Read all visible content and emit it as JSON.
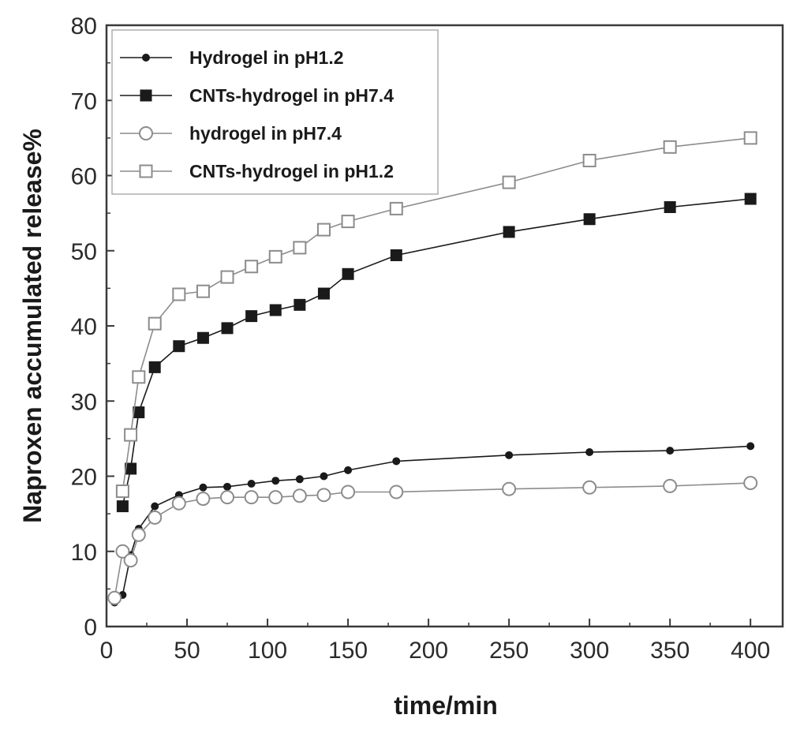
{
  "chart_data": {
    "type": "line",
    "title": "",
    "xlabel": "time/min",
    "ylabel": "Naproxen accumulated release%",
    "xlim": [
      0,
      420
    ],
    "ylim": [
      0,
      80
    ],
    "xticks": [
      0,
      50,
      100,
      150,
      200,
      250,
      300,
      350,
      400
    ],
    "yticks": [
      0,
      10,
      20,
      30,
      40,
      50,
      60,
      70,
      80
    ],
    "grid": false,
    "legend_position": "top-left",
    "series": [
      {
        "name": "Hydrogel in pH1.2",
        "marker": "small-filled-circle",
        "color": "#1a1a1a",
        "x": [
          5,
          10,
          15,
          20,
          30,
          45,
          60,
          75,
          90,
          105,
          120,
          135,
          150,
          180,
          250,
          300,
          350,
          400
        ],
        "y": [
          3.2,
          4.2,
          9.5,
          13.0,
          16.0,
          17.5,
          18.5,
          18.6,
          19.0,
          19.4,
          19.6,
          20.0,
          20.8,
          22.0,
          22.8,
          23.2,
          23.4,
          24.0
        ]
      },
      {
        "name": "CNTs-hydrogel in pH7.4",
        "marker": "filled-square",
        "color": "#1a1a1a",
        "x": [
          10,
          15,
          20,
          30,
          45,
          60,
          75,
          90,
          105,
          120,
          135,
          150,
          180,
          250,
          300,
          350,
          400
        ],
        "y": [
          16.0,
          21.0,
          28.5,
          34.5,
          37.3,
          38.4,
          39.7,
          41.3,
          42.1,
          42.8,
          44.3,
          46.9,
          49.4,
          52.5,
          54.2,
          55.8,
          56.9
        ]
      },
      {
        "name": "hydrogel in pH7.4",
        "marker": "open-circle",
        "color": "#8c8c8c",
        "x": [
          5,
          10,
          15,
          20,
          30,
          45,
          60,
          75,
          90,
          105,
          120,
          135,
          150,
          180,
          250,
          300,
          350,
          400
        ],
        "y": [
          3.8,
          10.0,
          8.8,
          12.2,
          14.5,
          16.4,
          17.0,
          17.2,
          17.2,
          17.2,
          17.4,
          17.5,
          17.9,
          17.9,
          18.3,
          18.5,
          18.7,
          19.1
        ]
      },
      {
        "name": "CNTs-hydrogel in pH1.2",
        "marker": "open-square",
        "color": "#8c8c8c",
        "x": [
          10,
          15,
          20,
          30,
          45,
          60,
          75,
          90,
          105,
          120,
          135,
          150,
          180,
          250,
          300,
          350,
          400
        ],
        "y": [
          18.0,
          25.5,
          33.2,
          40.3,
          44.2,
          44.6,
          46.5,
          47.9,
          49.2,
          50.4,
          52.8,
          53.9,
          55.6,
          59.1,
          62.0,
          63.8,
          65.0
        ]
      }
    ]
  }
}
